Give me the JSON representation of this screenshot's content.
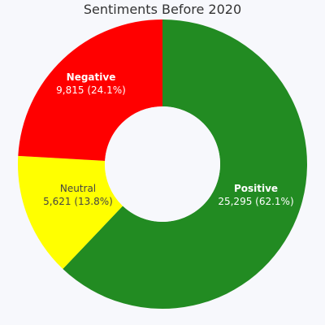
{
  "chart_data": {
    "type": "pie",
    "title": "Sentiments Before 2020",
    "hole": true,
    "slices": [
      {
        "label": "Positive",
        "value": 25295,
        "value_text": "25,295",
        "percent_text": "(62.1%)",
        "color": "#228b22",
        "text_color": "#ffffff",
        "label_bold": true
      },
      {
        "label": "Neutral",
        "value": 5621,
        "value_text": "5,621",
        "percent_text": "(13.8%)",
        "color": "#ffff00",
        "text_color": "#444444",
        "label_bold": false
      },
      {
        "label": "Negative",
        "value": 9815,
        "value_text": "9,815",
        "percent_text": "(24.1%)",
        "color": "#ff0000",
        "text_color": "#ffffff",
        "label_bold": true
      }
    ]
  }
}
